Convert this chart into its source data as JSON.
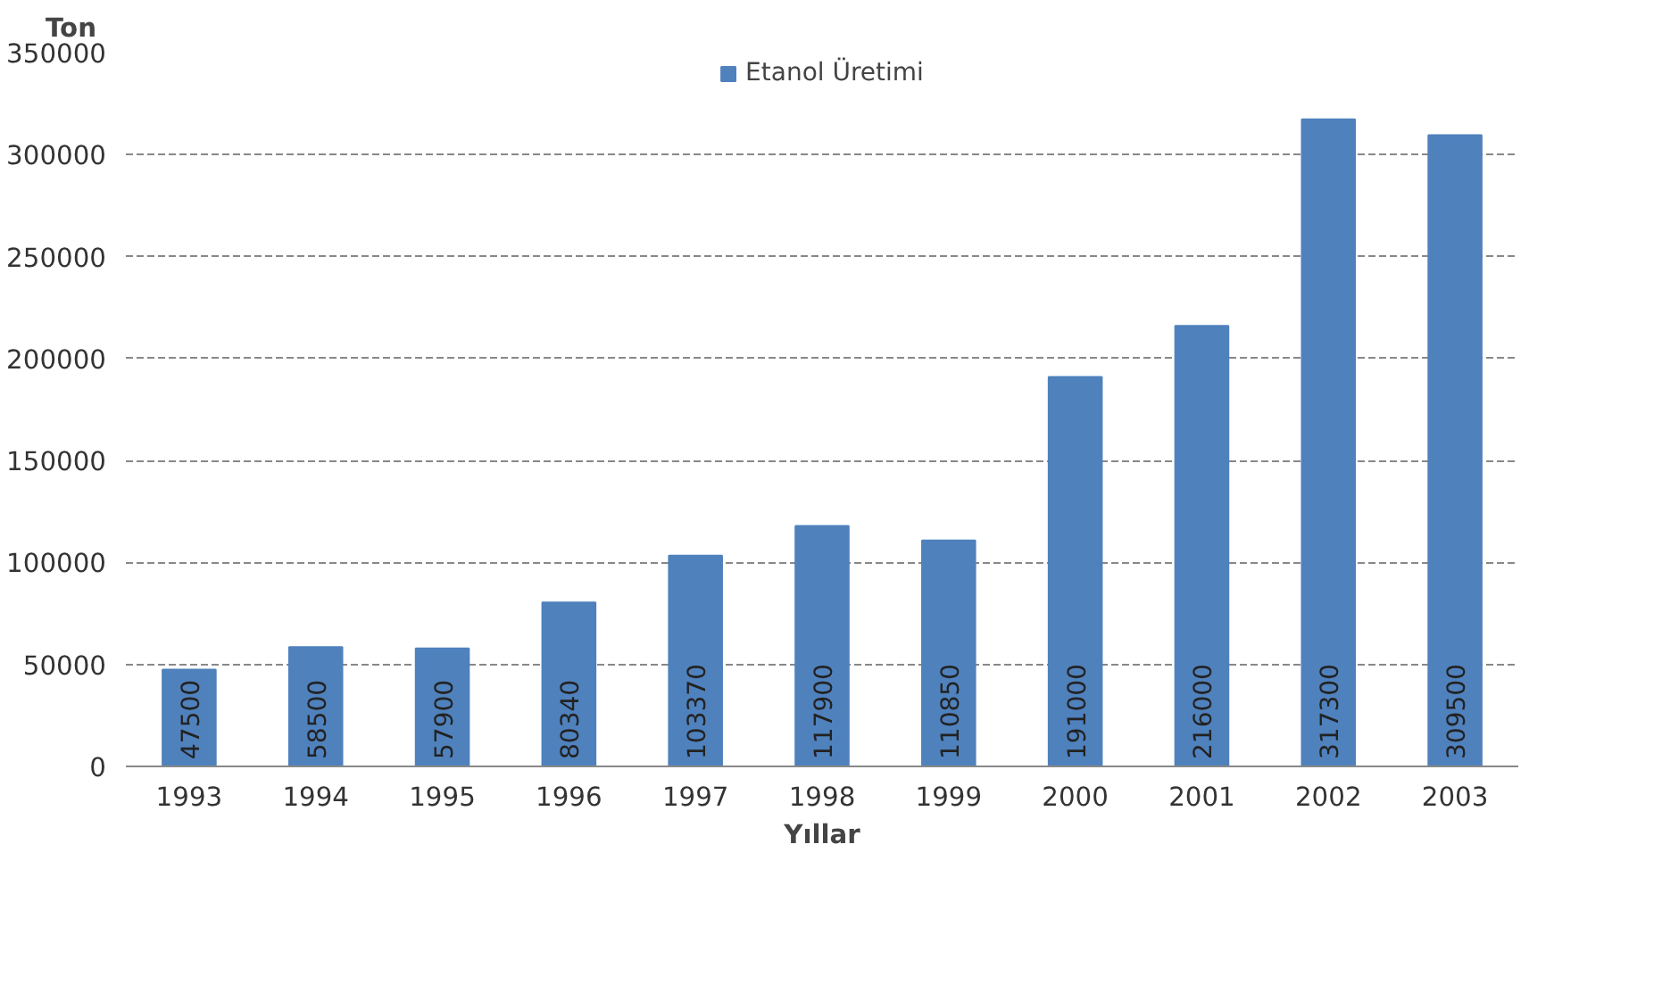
{
  "chart_data": {
    "type": "bar",
    "xlabel": "Yıllar",
    "ylabel": "Ton",
    "categories": [
      "1993",
      "1994",
      "1995",
      "1996",
      "1997",
      "1998",
      "1999",
      "2000",
      "2001",
      "2002",
      "2003"
    ],
    "series": [
      {
        "name": "Etanol Üretimi",
        "color": "#4f81bd",
        "values": [
          47500,
          58500,
          57900,
          80340,
          103370,
          117900,
          110850,
          191000,
          216000,
          317300,
          309500
        ]
      }
    ],
    "ylim": [
      0,
      350000
    ],
    "yticks": [
      0,
      50000,
      100000,
      150000,
      200000,
      250000,
      300000,
      350000
    ],
    "grid": "y",
    "legend": "top",
    "data_labels": true
  }
}
